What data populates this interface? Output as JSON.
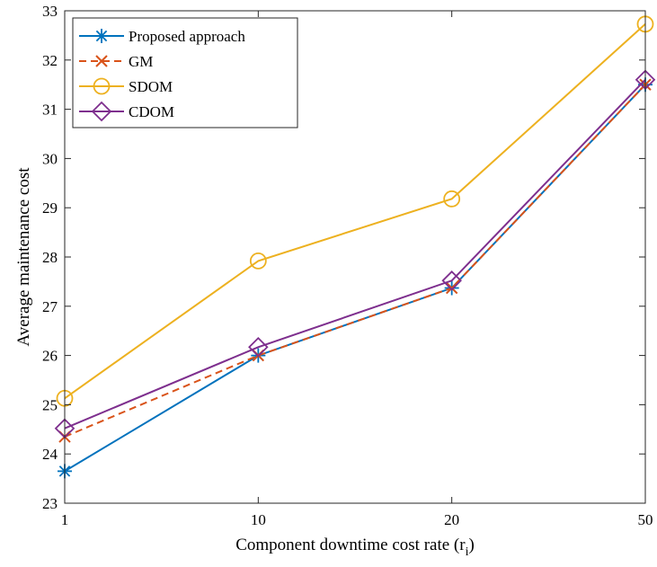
{
  "chart_data": {
    "type": "line",
    "title": "",
    "xlabel": "Component downtime cost rate (r",
    "xlabel_subscript": "i",
    "xlabel_close": ")",
    "ylabel": "Average maintenance cost",
    "categories": [
      "1",
      "10",
      "20",
      "50"
    ],
    "ylim": [
      23,
      33
    ],
    "yticks": [
      23,
      24,
      25,
      26,
      27,
      28,
      29,
      30,
      31,
      32,
      33
    ],
    "grid": false,
    "legend_position": "top-left",
    "series": [
      {
        "name": "Proposed approach",
        "values": [
          23.65,
          26.0,
          27.37,
          31.5
        ],
        "color": "#0072BD",
        "marker": "asterisk",
        "dash": "solid"
      },
      {
        "name": "GM",
        "values": [
          24.35,
          26.0,
          27.37,
          31.5
        ],
        "color": "#D95319",
        "marker": "x",
        "dash": "dashed"
      },
      {
        "name": "SDOM",
        "values": [
          25.13,
          27.92,
          29.18,
          32.73
        ],
        "color": "#EDB120",
        "marker": "circle",
        "dash": "solid"
      },
      {
        "name": "CDOM",
        "values": [
          24.52,
          26.17,
          27.52,
          31.6
        ],
        "color": "#7E2F8E",
        "marker": "diamond",
        "dash": "solid"
      }
    ]
  }
}
